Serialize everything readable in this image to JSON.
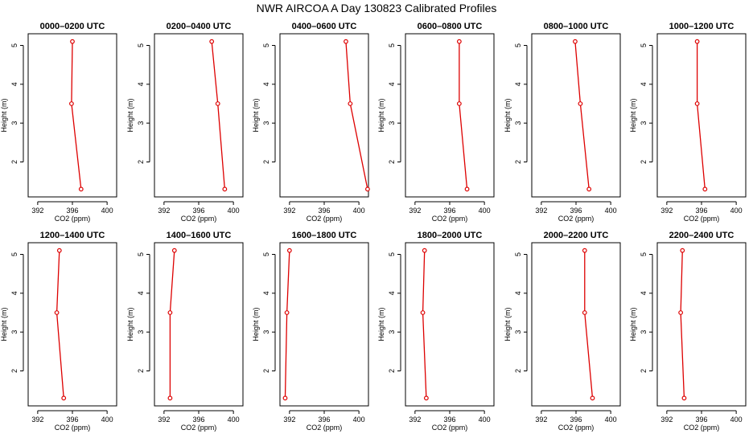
{
  "title": "NWR AIRCOA A  Day 130823  Calibrated Profiles",
  "colors": {
    "profile_line": "#dd0000",
    "axis": "#000000"
  },
  "chart_data": [
    {
      "type": "line",
      "title": "0000–0200 UTC",
      "xlabel": "CO2 (ppm)",
      "ylabel": "Height (m)",
      "xticks": [
        392,
        396,
        400
      ],
      "yticks": [
        2,
        3,
        4,
        5
      ],
      "xlim": [
        390.9,
        401.1
      ],
      "ylim": [
        1.1,
        5.3
      ],
      "x": [
        396.0,
        395.9,
        397.0
      ],
      "y": [
        5.1,
        3.5,
        1.3
      ]
    },
    {
      "type": "line",
      "title": "0200–0400 UTC",
      "xlabel": "CO2 (ppm)",
      "ylabel": "Height (m)",
      "xticks": [
        392,
        396,
        400
      ],
      "yticks": [
        2,
        3,
        4,
        5
      ],
      "xlim": [
        390.9,
        401.1
      ],
      "ylim": [
        1.1,
        5.3
      ],
      "x": [
        397.5,
        398.2,
        399.0
      ],
      "y": [
        5.1,
        3.5,
        1.3
      ]
    },
    {
      "type": "line",
      "title": "0400–0600 UTC",
      "xlabel": "CO2 (ppm)",
      "ylabel": "Height (m)",
      "xticks": [
        392,
        396,
        400
      ],
      "yticks": [
        2,
        3,
        4,
        5
      ],
      "xlim": [
        390.9,
        401.1
      ],
      "ylim": [
        1.1,
        5.3
      ],
      "x": [
        398.5,
        399.0,
        401.0
      ],
      "y": [
        5.1,
        3.5,
        1.3
      ]
    },
    {
      "type": "line",
      "title": "0600–0800 UTC",
      "xlabel": "CO2 (ppm)",
      "ylabel": "Height (m)",
      "xticks": [
        392,
        396,
        400
      ],
      "yticks": [
        2,
        3,
        4,
        5
      ],
      "xlim": [
        390.9,
        401.1
      ],
      "ylim": [
        1.1,
        5.3
      ],
      "x": [
        397.1,
        397.1,
        398.0
      ],
      "y": [
        5.1,
        3.5,
        1.3
      ]
    },
    {
      "type": "line",
      "title": "0800–1000 UTC",
      "xlabel": "CO2 (ppm)",
      "ylabel": "Height (m)",
      "xticks": [
        392,
        396,
        400
      ],
      "yticks": [
        2,
        3,
        4,
        5
      ],
      "xlim": [
        390.9,
        401.1
      ],
      "ylim": [
        1.1,
        5.3
      ],
      "x": [
        395.9,
        396.5,
        397.5
      ],
      "y": [
        5.1,
        3.5,
        1.3
      ]
    },
    {
      "type": "line",
      "title": "1000–1200 UTC",
      "xlabel": "CO2 (ppm)",
      "ylabel": "Height (m)",
      "xticks": [
        392,
        396,
        400
      ],
      "yticks": [
        2,
        3,
        4,
        5
      ],
      "xlim": [
        390.9,
        401.1
      ],
      "ylim": [
        1.1,
        5.3
      ],
      "x": [
        395.5,
        395.5,
        396.4
      ],
      "y": [
        5.1,
        3.5,
        1.3
      ]
    },
    {
      "type": "line",
      "title": "1200–1400 UTC",
      "xlabel": "CO2 (ppm)",
      "ylabel": "Height (m)",
      "xticks": [
        392,
        396,
        400
      ],
      "yticks": [
        2,
        3,
        4,
        5
      ],
      "xlim": [
        390.9,
        401.1
      ],
      "ylim": [
        1.1,
        5.3
      ],
      "x": [
        394.5,
        394.2,
        395.0
      ],
      "y": [
        5.1,
        3.5,
        1.3
      ]
    },
    {
      "type": "line",
      "title": "1400–1600 UTC",
      "xlabel": "CO2 (ppm)",
      "ylabel": "Height (m)",
      "xticks": [
        392,
        396,
        400
      ],
      "yticks": [
        2,
        3,
        4,
        5
      ],
      "xlim": [
        390.9,
        401.1
      ],
      "ylim": [
        1.1,
        5.3
      ],
      "x": [
        393.2,
        392.7,
        392.7
      ],
      "y": [
        5.1,
        3.5,
        1.3
      ]
    },
    {
      "type": "line",
      "title": "1600–1800 UTC",
      "xlabel": "CO2 (ppm)",
      "ylabel": "Height (m)",
      "xticks": [
        392,
        396,
        400
      ],
      "yticks": [
        2,
        3,
        4,
        5
      ],
      "xlim": [
        390.9,
        401.1
      ],
      "ylim": [
        1.1,
        5.3
      ],
      "x": [
        392.0,
        391.7,
        391.5
      ],
      "y": [
        5.1,
        3.5,
        1.3
      ]
    },
    {
      "type": "line",
      "title": "1800–2000 UTC",
      "xlabel": "CO2 (ppm)",
      "ylabel": "Height (m)",
      "xticks": [
        392,
        396,
        400
      ],
      "yticks": [
        2,
        3,
        4,
        5
      ],
      "xlim": [
        390.9,
        401.1
      ],
      "ylim": [
        1.1,
        5.3
      ],
      "x": [
        393.1,
        392.9,
        393.3
      ],
      "y": [
        5.1,
        3.5,
        1.3
      ]
    },
    {
      "type": "line",
      "title": "2000–2200 UTC",
      "xlabel": "CO2 (ppm)",
      "ylabel": "Height (m)",
      "xticks": [
        392,
        396,
        400
      ],
      "yticks": [
        2,
        3,
        4,
        5
      ],
      "xlim": [
        390.9,
        401.1
      ],
      "ylim": [
        1.1,
        5.3
      ],
      "x": [
        397.0,
        397.0,
        397.9
      ],
      "y": [
        5.1,
        3.5,
        1.3
      ]
    },
    {
      "type": "line",
      "title": "2200–2400 UTC",
      "xlabel": "CO2 (ppm)",
      "ylabel": "Height (m)",
      "xticks": [
        392,
        396,
        400
      ],
      "yticks": [
        2,
        3,
        4,
        5
      ],
      "xlim": [
        390.9,
        401.1
      ],
      "ylim": [
        1.1,
        5.3
      ],
      "x": [
        393.8,
        393.6,
        394.0
      ],
      "y": [
        5.1,
        3.5,
        1.3
      ]
    }
  ]
}
